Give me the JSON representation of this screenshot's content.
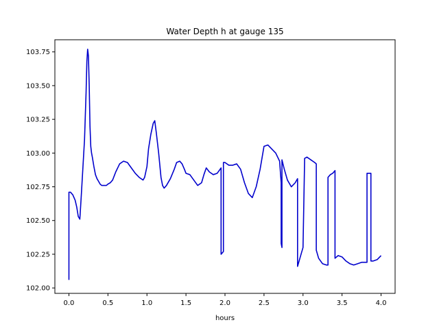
{
  "chart_data": {
    "type": "line",
    "title": "Water Depth h at gauge 135",
    "xlabel": "hours",
    "ylabel": "",
    "xlim": [
      -0.18,
      4.18
    ],
    "ylim": [
      101.96,
      103.84
    ],
    "xticks": [
      0.0,
      0.5,
      1.0,
      1.5,
      2.0,
      2.5,
      3.0,
      3.5,
      4.0
    ],
    "xtick_labels": [
      "0.0",
      "0.5",
      "1.0",
      "1.5",
      "2.0",
      "2.5",
      "3.0",
      "3.5",
      "4.0"
    ],
    "yticks": [
      102.0,
      102.25,
      102.5,
      102.75,
      103.0,
      103.25,
      103.5,
      103.75
    ],
    "ytick_labels": [
      "102.00",
      "102.25",
      "102.50",
      "102.75",
      "103.00",
      "103.25",
      "103.50",
      "103.75"
    ],
    "grid": false,
    "color": "#0000cc",
    "series": [
      {
        "x": [
          0.0,
          0.0,
          0.02,
          0.05,
          0.08,
          0.1,
          0.12,
          0.14,
          0.16,
          0.18,
          0.2,
          0.22,
          0.23,
          0.24,
          0.25,
          0.26,
          0.27,
          0.28,
          0.29,
          0.3,
          0.32,
          0.34,
          0.36,
          0.38,
          0.4,
          0.42,
          0.45,
          0.48,
          0.5,
          0.53,
          0.56,
          0.6,
          0.65,
          0.7,
          0.75,
          0.8,
          0.85,
          0.9,
          0.95,
          0.97,
          1.0,
          1.02,
          1.05,
          1.08,
          1.1,
          1.12,
          1.15,
          1.18,
          1.2,
          1.22,
          1.25,
          1.3,
          1.35,
          1.38,
          1.42,
          1.45,
          1.48,
          1.5,
          1.55,
          1.6,
          1.65,
          1.7,
          1.73,
          1.76,
          1.8,
          1.85,
          1.9,
          1.95,
          1.95,
          1.98,
          1.98,
          2.0,
          2.05,
          2.1,
          2.15,
          2.2,
          2.25,
          2.3,
          2.35,
          2.4,
          2.45,
          2.5,
          2.55,
          2.6,
          2.65,
          2.7,
          2.72,
          2.72,
          2.73,
          2.73,
          2.76,
          2.8,
          2.85,
          2.9,
          2.93,
          2.93,
          2.96,
          3.0,
          3.02,
          3.02,
          3.05,
          3.1,
          3.15,
          3.17,
          3.17,
          3.2,
          3.25,
          3.3,
          3.32,
          3.32,
          3.35,
          3.38,
          3.41,
          3.41,
          3.45,
          3.5,
          3.55,
          3.6,
          3.65,
          3.7,
          3.75,
          3.8,
          3.82,
          3.82,
          3.85,
          3.87,
          3.87,
          3.9,
          3.95,
          4.0
        ],
        "y": [
          102.06,
          102.71,
          102.71,
          102.69,
          102.65,
          102.6,
          102.53,
          102.51,
          102.7,
          102.9,
          103.1,
          103.45,
          103.68,
          103.77,
          103.72,
          103.5,
          103.2,
          103.05,
          103.0,
          102.97,
          102.9,
          102.84,
          102.81,
          102.79,
          102.77,
          102.76,
          102.76,
          102.76,
          102.77,
          102.78,
          102.8,
          102.86,
          102.92,
          102.94,
          102.93,
          102.89,
          102.85,
          102.82,
          102.8,
          102.82,
          102.9,
          103.03,
          103.14,
          103.22,
          103.24,
          103.15,
          103.0,
          102.82,
          102.76,
          102.74,
          102.76,
          102.81,
          102.88,
          102.93,
          102.94,
          102.92,
          102.88,
          102.85,
          102.84,
          102.8,
          102.76,
          102.78,
          102.84,
          102.89,
          102.86,
          102.84,
          102.85,
          102.89,
          102.25,
          102.27,
          102.93,
          102.93,
          102.91,
          102.91,
          102.92,
          102.88,
          102.78,
          102.7,
          102.67,
          102.75,
          102.88,
          103.05,
          103.06,
          103.03,
          103.0,
          102.94,
          102.78,
          102.33,
          102.3,
          102.95,
          102.88,
          102.8,
          102.75,
          102.78,
          102.81,
          102.16,
          102.22,
          102.3,
          102.94,
          102.96,
          102.97,
          102.95,
          102.93,
          102.92,
          102.28,
          102.22,
          102.18,
          102.17,
          102.17,
          102.82,
          102.84,
          102.85,
          102.87,
          102.22,
          102.24,
          102.23,
          102.2,
          102.18,
          102.17,
          102.18,
          102.19,
          102.19,
          102.19,
          102.85,
          102.85,
          102.85,
          102.2,
          102.2,
          102.21,
          102.24
        ]
      }
    ]
  }
}
